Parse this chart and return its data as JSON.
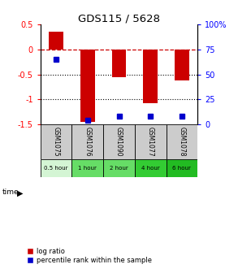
{
  "title": "GDS115 / 5628",
  "samples": [
    "GSM1075",
    "GSM1076",
    "GSM1090",
    "GSM1077",
    "GSM1078"
  ],
  "time_labels": [
    "0.5 hour",
    "1 hour",
    "2 hour",
    "4 hour",
    "6 hour"
  ],
  "time_colors": [
    "#d4f5d4",
    "#66dd66",
    "#66dd66",
    "#33cc33",
    "#22bb22"
  ],
  "log_ratios": [
    0.35,
    -1.45,
    -0.55,
    -1.08,
    -0.62
  ],
  "percentile_ranks": [
    65,
    4,
    8,
    8,
    8
  ],
  "bar_color": "#cc0000",
  "dot_color": "#0000cc",
  "ylim_left": [
    -1.5,
    0.5
  ],
  "ylim_right": [
    0,
    100
  ],
  "yticks_left": [
    -1.5,
    -1.0,
    -0.5,
    0.0,
    0.5
  ],
  "ytick_labels_left": [
    "-1.5",
    "-1",
    "-0.5",
    "0",
    "0.5"
  ],
  "yticks_right": [
    0,
    25,
    50,
    75,
    100
  ],
  "ytick_labels_right": [
    "0",
    "25",
    "50",
    "75",
    "100%"
  ],
  "background_color": "#ffffff",
  "gsm_bg_color": "#cccccc",
  "bar_width": 0.45,
  "legend_log_ratio": "log ratio",
  "legend_percentile": "percentile rank within the sample"
}
